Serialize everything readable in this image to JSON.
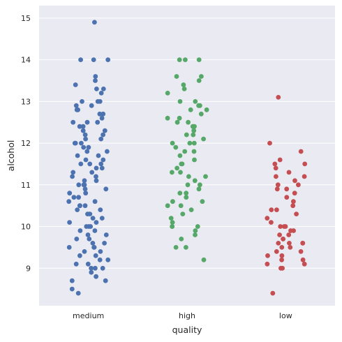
{
  "chart_data": {
    "type": "scatter",
    "subtype": "stripplot",
    "xlabel": "quality",
    "ylabel": "alcohol",
    "categories": [
      "medium",
      "high",
      "low"
    ],
    "ylim": [
      8.1,
      15.3
    ],
    "yticks": [
      9,
      10,
      11,
      12,
      13,
      14,
      15
    ],
    "grid": true,
    "background": "#eaeaf2",
    "colors": {
      "medium": "#4c72b0",
      "high": "#55a868",
      "low": "#c44e52"
    },
    "series": [
      {
        "category": "medium",
        "values": [
          14.9,
          14.0,
          14.0,
          14.0,
          13.6,
          13.5,
          13.4,
          13.3,
          13.3,
          13.2,
          13.0,
          13.0,
          13.0,
          12.9,
          12.9,
          12.8,
          12.8,
          12.7,
          12.7,
          12.6,
          12.5,
          12.5,
          12.5,
          12.4,
          12.4,
          12.3,
          12.3,
          12.2,
          12.2,
          12.1,
          12.1,
          12.0,
          12.0,
          12.0,
          11.9,
          11.9,
          11.8,
          11.8,
          11.7,
          11.7,
          11.6,
          11.6,
          11.5,
          11.5,
          11.5,
          11.4,
          11.4,
          11.3,
          11.3,
          11.2,
          11.2,
          11.1,
          11.1,
          11.0,
          11.0,
          11.0,
          10.9,
          10.9,
          10.8,
          10.8,
          10.7,
          10.7,
          10.6,
          10.6,
          10.5,
          10.5,
          10.5,
          10.4,
          10.4,
          10.3,
          10.3,
          10.2,
          10.2,
          10.1,
          10.1,
          10.0,
          10.0,
          10.0,
          9.9,
          9.9,
          9.8,
          9.8,
          9.7,
          9.7,
          9.6,
          9.6,
          9.5,
          9.5,
          9.5,
          9.4,
          9.4,
          9.3,
          9.3,
          9.2,
          9.2,
          9.1,
          9.1,
          9.0,
          9.0,
          9.0,
          8.9,
          8.8,
          8.7,
          8.7,
          8.5,
          8.4
        ]
      },
      {
        "category": "high",
        "values": [
          14.0,
          14.0,
          14.0,
          13.6,
          13.6,
          13.5,
          13.4,
          13.3,
          13.2,
          13.0,
          13.0,
          12.9,
          12.9,
          12.8,
          12.8,
          12.7,
          12.6,
          12.6,
          12.5,
          12.5,
          12.4,
          12.4,
          12.3,
          12.2,
          12.2,
          12.1,
          12.0,
          12.0,
          12.0,
          11.9,
          11.8,
          11.8,
          11.7,
          11.6,
          11.5,
          11.5,
          11.4,
          11.3,
          11.3,
          11.2,
          11.2,
          11.1,
          11.0,
          11.0,
          10.9,
          10.8,
          10.8,
          10.7,
          10.6,
          10.6,
          10.5,
          10.5,
          10.4,
          10.3,
          10.2,
          10.1,
          10.0,
          10.0,
          10.0,
          9.9,
          9.8,
          9.7,
          9.5,
          9.5,
          9.2
        ]
      },
      {
        "category": "low",
        "values": [
          13.1,
          12.0,
          11.8,
          11.6,
          11.5,
          11.5,
          11.4,
          11.3,
          11.2,
          11.2,
          11.1,
          11.0,
          11.0,
          10.9,
          10.9,
          10.8,
          10.7,
          10.6,
          10.5,
          10.4,
          10.4,
          10.3,
          10.2,
          10.1,
          10.0,
          10.0,
          10.0,
          9.9,
          9.9,
          9.8,
          9.8,
          9.7,
          9.7,
          9.6,
          9.6,
          9.6,
          9.6,
          9.5,
          9.5,
          9.4,
          9.4,
          9.3,
          9.3,
          9.2,
          9.2,
          9.1,
          9.1,
          9.0,
          9.0,
          8.4
        ]
      }
    ]
  }
}
